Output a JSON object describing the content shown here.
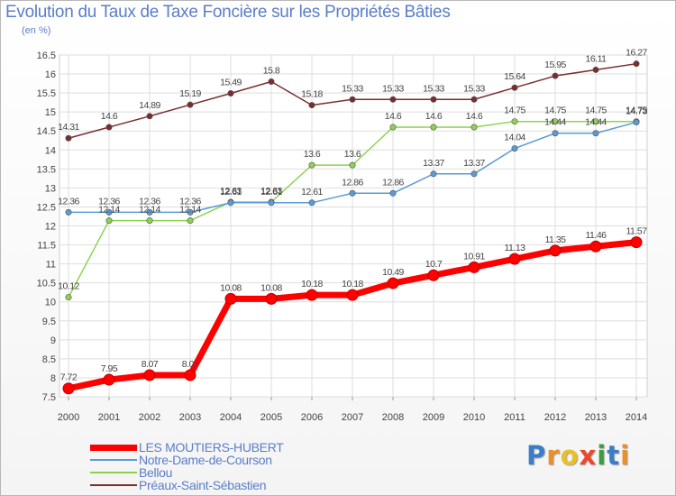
{
  "header": {
    "title": "Evolution du Taux de Taxe Foncière sur les Propriétés Bâties",
    "subtitle": "(en %)"
  },
  "logo": {
    "text": "Proxiti",
    "letter_colors": [
      "#3a7ec8",
      "#e8902a",
      "#e8c02a",
      "#e84a2a",
      "#3a9e3a",
      "#3a7ec8",
      "#e8902a"
    ]
  },
  "chart_data": {
    "type": "line",
    "title": "Evolution du Taux de Taxe Foncière sur les Propriétés Bâties",
    "ylabel": "(en %)",
    "x": [
      "2000",
      "2001",
      "2002",
      "2003",
      "2004",
      "2005",
      "2006",
      "2007",
      "2008",
      "2009",
      "2010",
      "2011",
      "2012",
      "2013",
      "2014"
    ],
    "ylim": [
      7.5,
      16.5
    ],
    "yticks": [
      "7.5",
      "8",
      "8.5",
      "9",
      "9.5",
      "10",
      "10.5",
      "11",
      "11.5",
      "12",
      "12.5",
      "13",
      "13.5",
      "14",
      "14.5",
      "15",
      "15.5",
      "16",
      "16.5"
    ],
    "grid": true,
    "legend_position": "bottom-left",
    "series": [
      {
        "name": "LES MOUTIERS-HUBERT",
        "color": "#ff0000",
        "values": [
          7.72,
          7.95,
          8.07,
          8.07,
          10.08,
          10.08,
          10.18,
          10.18,
          10.49,
          10.7,
          10.91,
          11.13,
          11.35,
          11.46,
          11.57
        ],
        "labels": [
          "7.72",
          "7.95",
          "8.07",
          "8.07",
          "10.08",
          "10.08",
          "10.18",
          "10.18",
          "10.49",
          "10.7",
          "10.91",
          "11.13",
          "11.35",
          "11.46",
          "11.57"
        ]
      },
      {
        "name": "Notre-Dame-de-Courson",
        "color": "#5b9bd5",
        "values": [
          12.36,
          12.36,
          12.36,
          12.36,
          12.61,
          12.61,
          12.61,
          12.86,
          12.86,
          13.37,
          13.37,
          14.04,
          14.44,
          14.44,
          14.73
        ],
        "labels": [
          "12.36",
          "12.36",
          "12.36",
          "12.36",
          "12.61",
          "12.61",
          "12.61",
          "12.86",
          "12.86",
          "13.37",
          "13.37",
          "14.04",
          "14.44",
          "14.44",
          "14.73"
        ]
      },
      {
        "name": "Bellou",
        "color": "#8fd14f",
        "values": [
          10.12,
          12.14,
          12.14,
          12.14,
          12.63,
          12.63,
          13.6,
          13.6,
          14.6,
          14.6,
          14.6,
          14.75,
          14.75,
          14.75,
          14.75
        ],
        "labels": [
          "10.12",
          "12.14",
          "12.14",
          "12.14",
          "12.63",
          "12.63",
          "13.6",
          "13.6",
          "14.6",
          "14.6",
          "14.6",
          "14.75",
          "14.75",
          "14.75",
          "14.75"
        ]
      },
      {
        "name": "Préaux-Saint-Sébastien",
        "color": "#7b2d2d",
        "values": [
          14.31,
          14.6,
          14.89,
          15.19,
          15.49,
          15.8,
          15.18,
          15.33,
          15.33,
          15.33,
          15.33,
          15.64,
          15.95,
          16.11,
          16.27
        ],
        "labels": [
          "14.31",
          "14.6",
          "14.89",
          "15.19",
          "15.49",
          "15.8",
          "15.18",
          "15.33",
          "15.33",
          "15.33",
          "15.33",
          "15.64",
          "15.95",
          "16.11",
          "16.27"
        ]
      }
    ]
  }
}
